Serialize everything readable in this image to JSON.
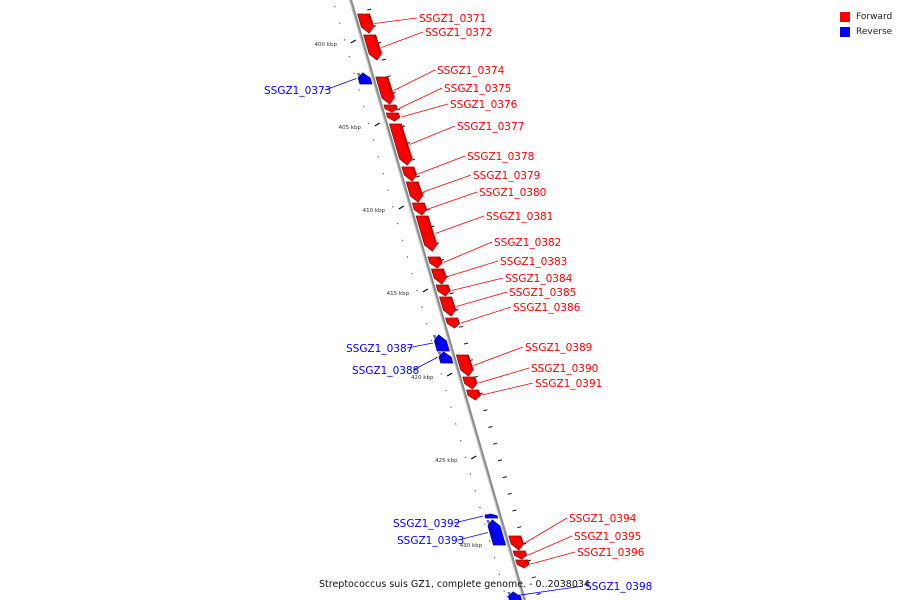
{
  "legend": {
    "items": [
      {
        "label": "Forward",
        "color": "#ff0000"
      },
      {
        "label": "Reverse",
        "color": "#0000ff"
      }
    ]
  },
  "genome_title": "Streptococcus suis GZ1, complete genome. - 0..2038034",
  "colors": {
    "forward": "#ff0000",
    "reverse": "#0000ff",
    "backbone": "#8c8c8c"
  },
  "ticks": [
    {
      "label": "400 kbp",
      "kbp": 400
    },
    {
      "label": "405 kbp",
      "kbp": 405
    },
    {
      "label": "410 kbp",
      "kbp": 410
    },
    {
      "label": "415 kbp",
      "kbp": 415
    },
    {
      "label": "420 kbp",
      "kbp": 420
    },
    {
      "label": "425 kbp",
      "kbp": 425
    },
    {
      "label": "430 kbp",
      "kbp": 430
    }
  ],
  "genes": [
    {
      "id": "SSGZ1_0371",
      "strand": "forward"
    },
    {
      "id": "SSGZ1_0372",
      "strand": "forward"
    },
    {
      "id": "SSGZ1_0373",
      "strand": "reverse"
    },
    {
      "id": "SSGZ1_0374",
      "strand": "forward"
    },
    {
      "id": "SSGZ1_0375",
      "strand": "forward"
    },
    {
      "id": "SSGZ1_0376",
      "strand": "forward"
    },
    {
      "id": "SSGZ1_0377",
      "strand": "forward"
    },
    {
      "id": "SSGZ1_0378",
      "strand": "forward"
    },
    {
      "id": "SSGZ1_0379",
      "strand": "forward"
    },
    {
      "id": "SSGZ1_0380",
      "strand": "forward"
    },
    {
      "id": "SSGZ1_0381",
      "strand": "forward"
    },
    {
      "id": "SSGZ1_0382",
      "strand": "forward"
    },
    {
      "id": "SSGZ1_0383",
      "strand": "forward"
    },
    {
      "id": "SSGZ1_0384",
      "strand": "forward"
    },
    {
      "id": "SSGZ1_0385",
      "strand": "forward"
    },
    {
      "id": "SSGZ1_0386",
      "strand": "forward"
    },
    {
      "id": "SSGZ1_0387",
      "strand": "reverse"
    },
    {
      "id": "SSGZ1_0388",
      "strand": "reverse"
    },
    {
      "id": "SSGZ1_0389",
      "strand": "forward"
    },
    {
      "id": "SSGZ1_0390",
      "strand": "forward"
    },
    {
      "id": "SSGZ1_0391",
      "strand": "forward"
    },
    {
      "id": "SSGZ1_0392",
      "strand": "reverse"
    },
    {
      "id": "SSGZ1_0393",
      "strand": "reverse"
    },
    {
      "id": "SSGZ1_0394",
      "strand": "forward"
    },
    {
      "id": "SSGZ1_0395",
      "strand": "forward"
    },
    {
      "id": "SSGZ1_0396",
      "strand": "forward"
    },
    {
      "id": "SSGZ1_0398",
      "strand": "reverse"
    }
  ]
}
